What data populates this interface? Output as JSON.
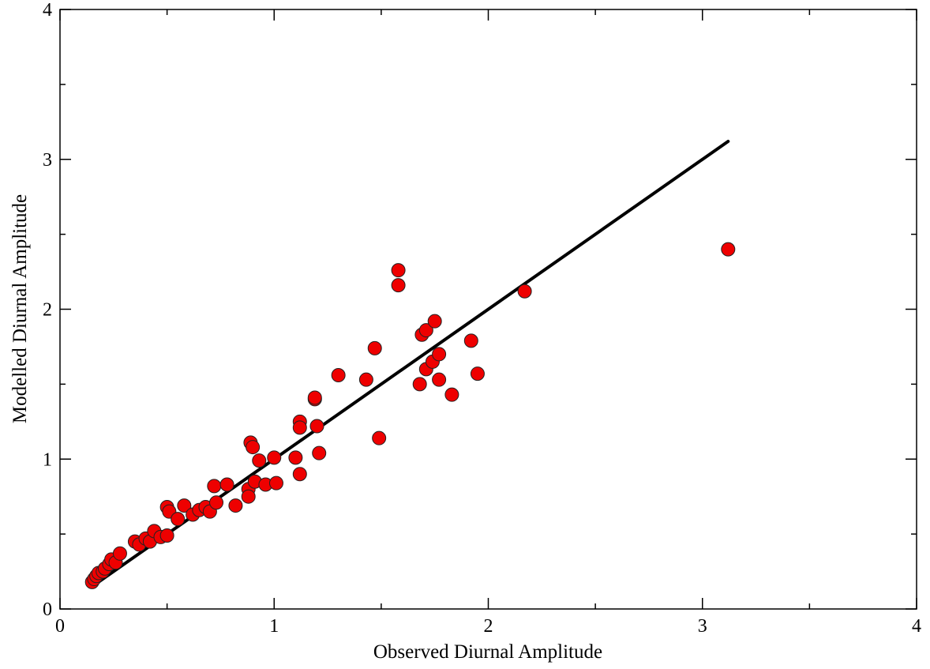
{
  "chart_data": {
    "type": "scatter",
    "xlabel": "Observed Diurnal Amplitude",
    "ylabel": "Modelled Diurnal Amplitude",
    "xlim": [
      0,
      4
    ],
    "ylim": [
      0,
      4
    ],
    "x_ticks": [
      "0",
      "1",
      "2",
      "3",
      "4"
    ],
    "y_ticks": [
      "0",
      "1",
      "2",
      "3",
      "4"
    ],
    "grid": false,
    "legend": "none",
    "point_color": "#ee0000",
    "line_color": "#000000",
    "series": [
      {
        "type": "scatter",
        "points": [
          [
            0.15,
            0.18
          ],
          [
            0.16,
            0.2
          ],
          [
            0.17,
            0.22
          ],
          [
            0.18,
            0.24
          ],
          [
            0.2,
            0.25
          ],
          [
            0.21,
            0.27
          ],
          [
            0.23,
            0.3
          ],
          [
            0.24,
            0.33
          ],
          [
            0.26,
            0.31
          ],
          [
            0.28,
            0.37
          ],
          [
            0.35,
            0.45
          ],
          [
            0.37,
            0.43
          ],
          [
            0.4,
            0.47
          ],
          [
            0.42,
            0.45
          ],
          [
            0.44,
            0.52
          ],
          [
            0.47,
            0.48
          ],
          [
            0.5,
            0.49
          ],
          [
            0.5,
            0.68
          ],
          [
            0.51,
            0.65
          ],
          [
            0.55,
            0.6
          ],
          [
            0.58,
            0.69
          ],
          [
            0.62,
            0.63
          ],
          [
            0.65,
            0.66
          ],
          [
            0.68,
            0.68
          ],
          [
            0.7,
            0.65
          ],
          [
            0.72,
            0.82
          ],
          [
            0.73,
            0.71
          ],
          [
            0.78,
            0.83
          ],
          [
            0.82,
            0.69
          ],
          [
            0.88,
            0.8
          ],
          [
            0.88,
            0.75
          ],
          [
            0.89,
            1.11
          ],
          [
            0.9,
            1.08
          ],
          [
            0.91,
            0.85
          ],
          [
            0.93,
            0.99
          ],
          [
            0.96,
            0.83
          ],
          [
            1.0,
            1.01
          ],
          [
            1.01,
            0.84
          ],
          [
            1.1,
            1.01
          ],
          [
            1.12,
            1.25
          ],
          [
            1.12,
            1.21
          ],
          [
            1.12,
            0.9
          ],
          [
            1.19,
            1.4
          ],
          [
            1.19,
            1.41
          ],
          [
            1.2,
            1.22
          ],
          [
            1.21,
            1.04
          ],
          [
            1.3,
            1.56
          ],
          [
            1.43,
            1.53
          ],
          [
            1.47,
            1.74
          ],
          [
            1.49,
            1.14
          ],
          [
            1.58,
            2.26
          ],
          [
            1.58,
            2.16
          ],
          [
            1.68,
            1.5
          ],
          [
            1.69,
            1.83
          ],
          [
            1.71,
            1.86
          ],
          [
            1.71,
            1.6
          ],
          [
            1.74,
            1.65
          ],
          [
            1.75,
            1.92
          ],
          [
            1.77,
            1.7
          ],
          [
            1.77,
            1.53
          ],
          [
            1.83,
            1.43
          ],
          [
            1.92,
            1.79
          ],
          [
            1.95,
            1.57
          ],
          [
            2.17,
            2.12
          ],
          [
            3.12,
            2.4
          ]
        ]
      },
      {
        "type": "line",
        "points": [
          [
            0.16,
            0.16
          ],
          [
            3.12,
            3.12
          ]
        ]
      }
    ]
  }
}
